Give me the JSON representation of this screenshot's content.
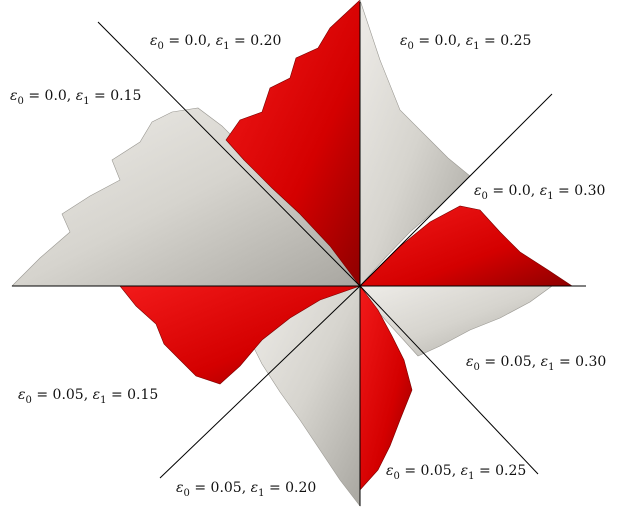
{
  "figure": {
    "labels": [
      {
        "eps0": "0.0",
        "eps1": "0.20"
      },
      {
        "eps0": "0.0",
        "eps1": "0.25"
      },
      {
        "eps0": "0.0",
        "eps1": "0.15"
      },
      {
        "eps0": "0.0",
        "eps1": "0.30"
      },
      {
        "eps0": "0.05",
        "eps1": "0.30"
      },
      {
        "eps0": "0.05",
        "eps1": "0.15"
      },
      {
        "eps0": "0.05",
        "eps1": "0.25"
      },
      {
        "eps0": "0.05",
        "eps1": "0.20"
      }
    ],
    "colors": {
      "red": "#d90000",
      "gray": "#d8d6d0",
      "line": "#000000"
    }
  }
}
